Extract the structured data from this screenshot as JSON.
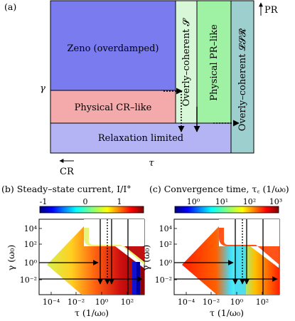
{
  "panel_a": {
    "label": "(a)",
    "regions": {
      "zeno": "Zeno (overdamped)",
      "physical_cr": "Physical CR–like",
      "relaxation": "Relaxation limited",
      "overly_coherent_s": "Overly–coherent 𝓢",
      "physical_pr": "Physical PR–like",
      "overly_coherent_lsr": "Overly–coherent 𝓛𝓢𝓡"
    },
    "y_axis_label": "γ",
    "x_axis_label": "τ",
    "cr_label": "CR",
    "pr_label": "PR",
    "colors": {
      "zeno": "#7b7bf0",
      "physical_cr": "#f4aaaa",
      "relaxation": "#b4b4f5",
      "overly_coherent_s": "#d8f7d8",
      "physical_pr": "#9ff2a3",
      "overly_coherent_lsr": "#9ecfcf"
    }
  },
  "panel_b": {
    "label": "(b) Steady–state current, I/I°",
    "colorbar_ticks": [
      "-1",
      "0",
      "1"
    ],
    "y_label": "γ (ω₀)",
    "x_label": "τ (1/ω₀)",
    "y_ticks": [
      "10⁴",
      "10²",
      "10⁰",
      "10⁻²"
    ],
    "x_ticks": [
      "10⁻⁴",
      "10⁻²",
      "10⁰",
      "10²"
    ]
  },
  "panel_c": {
    "label": "(c) Convergence time, τ꜀ (1/ω₀)",
    "colorbar_ticks": [
      "10⁰",
      "10¹",
      "10²",
      "10³"
    ],
    "y_label": "γ (ω₀)",
    "x_label": "τ (1/ω₀)",
    "y_ticks": [
      "10⁴",
      "10²",
      "10⁰",
      "10⁻²"
    ],
    "x_ticks": [
      "10⁻⁴",
      "10⁻²",
      "10⁰",
      "10²"
    ]
  }
}
